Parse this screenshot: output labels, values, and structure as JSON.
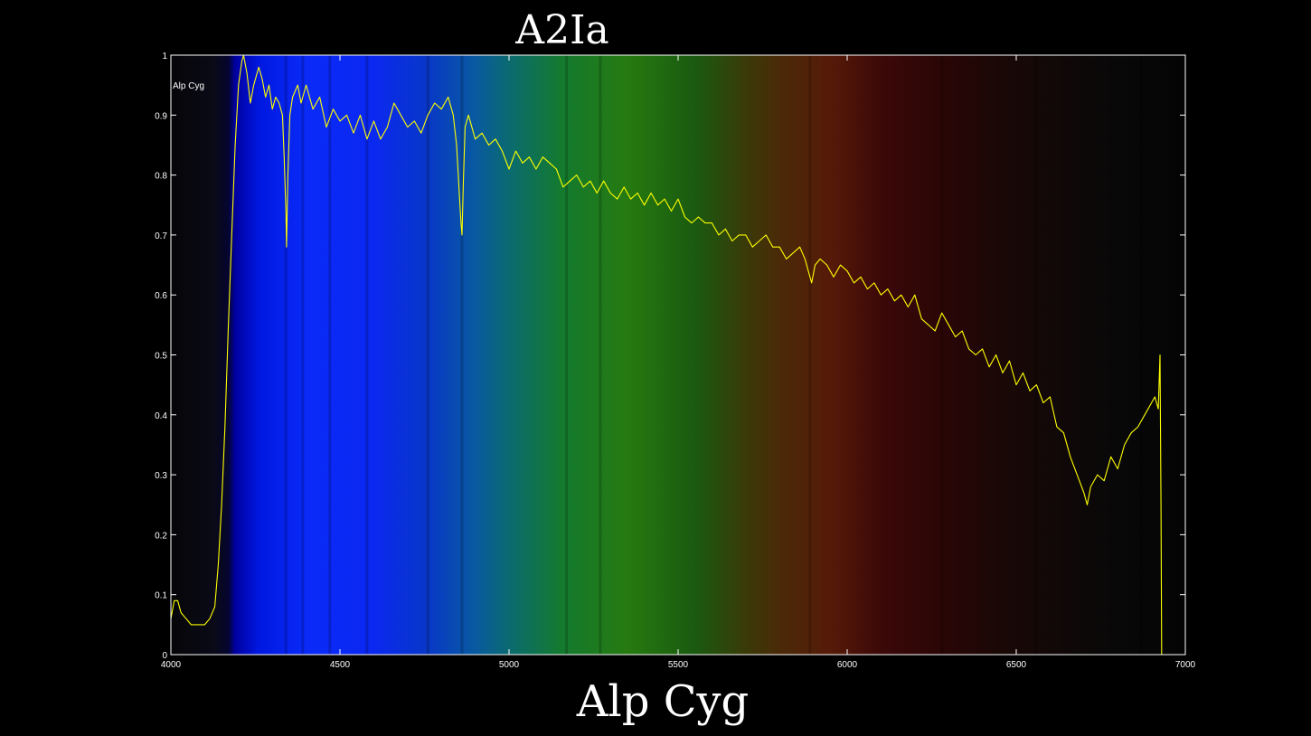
{
  "chart_data": {
    "type": "line",
    "title": "A2Ia",
    "xlabel": "Alp Cyg",
    "ylabel": "",
    "xlim": [
      4000,
      7000
    ],
    "ylim": [
      0,
      1
    ],
    "xticks": [
      4000,
      4500,
      5000,
      5500,
      6000,
      6500,
      7000
    ],
    "yticks": [
      0,
      0.1,
      0.2,
      0.3,
      0.4,
      0.5,
      0.6,
      0.7,
      0.8,
      0.9,
      1
    ],
    "grid": false,
    "legend": {
      "location": "top-left",
      "entries": [
        "Alp Cyg"
      ]
    },
    "colors": {
      "background": "#000000",
      "line": "#ffff00",
      "axes": "#ffffff"
    },
    "spectrum_background": [
      [
        4000,
        "#060608"
      ],
      [
        4130,
        "#0a0a18"
      ],
      [
        4170,
        "#050530"
      ],
      [
        4190,
        "#0000a0"
      ],
      [
        4260,
        "#0018e0"
      ],
      [
        4400,
        "#0a2af8"
      ],
      [
        4600,
        "#0a28f0"
      ],
      [
        4760,
        "#0838c8"
      ],
      [
        4900,
        "#085aa0"
      ],
      [
        5000,
        "#0b6a70"
      ],
      [
        5150,
        "#137a30"
      ],
      [
        5350,
        "#267a10"
      ],
      [
        5550,
        "#1a5a10"
      ],
      [
        5700,
        "#3a3a08"
      ],
      [
        5800,
        "#4a2a08"
      ],
      [
        5950,
        "#561a08"
      ],
      [
        6100,
        "#3c0808"
      ],
      [
        6300,
        "#280606"
      ],
      [
        6450,
        "#1a0806"
      ],
      [
        6600,
        "#120808"
      ],
      [
        6800,
        "#080808"
      ],
      [
        7000,
        "#040404"
      ]
    ],
    "series": [
      {
        "name": "Alp Cyg",
        "x": [
          4000,
          4010,
          4020,
          4030,
          4045,
          4060,
          4080,
          4100,
          4115,
          4130,
          4140,
          4150,
          4160,
          4170,
          4180,
          4190,
          4200,
          4210,
          4215,
          4225,
          4235,
          4245,
          4260,
          4270,
          4280,
          4290,
          4300,
          4310,
          4320,
          4330,
          4335,
          4340,
          4342,
          4346,
          4352,
          4360,
          4375,
          4385,
          4400,
          4420,
          4440,
          4460,
          4480,
          4500,
          4520,
          4540,
          4560,
          4580,
          4600,
          4620,
          4640,
          4660,
          4680,
          4700,
          4720,
          4740,
          4760,
          4780,
          4800,
          4820,
          4835,
          4845,
          4852,
          4858,
          4861,
          4865,
          4870,
          4880,
          4900,
          4920,
          4940,
          4960,
          4980,
          5000,
          5020,
          5040,
          5060,
          5080,
          5100,
          5120,
          5140,
          5160,
          5180,
          5200,
          5220,
          5240,
          5260,
          5280,
          5300,
          5320,
          5340,
          5360,
          5380,
          5400,
          5420,
          5440,
          5460,
          5480,
          5500,
          5520,
          5540,
          5560,
          5580,
          5600,
          5620,
          5640,
          5660,
          5680,
          5700,
          5720,
          5740,
          5760,
          5780,
          5800,
          5820,
          5840,
          5860,
          5875,
          5885,
          5895,
          5905,
          5920,
          5940,
          5960,
          5980,
          6000,
          6020,
          6040,
          6060,
          6080,
          6100,
          6120,
          6140,
          6160,
          6180,
          6200,
          6220,
          6240,
          6260,
          6280,
          6300,
          6320,
          6340,
          6360,
          6380,
          6400,
          6420,
          6440,
          6460,
          6480,
          6500,
          6520,
          6540,
          6560,
          6580,
          6600,
          6620,
          6640,
          6660,
          6680,
          6700,
          6710,
          6720,
          6740,
          6760,
          6780,
          6800,
          6820,
          6840,
          6860,
          6880,
          6900,
          6910,
          6920,
          6925,
          6928,
          6930
        ],
        "y": [
          0.06,
          0.09,
          0.09,
          0.07,
          0.06,
          0.05,
          0.05,
          0.05,
          0.06,
          0.08,
          0.15,
          0.25,
          0.38,
          0.55,
          0.7,
          0.85,
          0.95,
          0.99,
          1.0,
          0.97,
          0.92,
          0.95,
          0.98,
          0.96,
          0.93,
          0.95,
          0.91,
          0.93,
          0.92,
          0.9,
          0.83,
          0.74,
          0.68,
          0.8,
          0.9,
          0.93,
          0.95,
          0.92,
          0.95,
          0.91,
          0.93,
          0.88,
          0.91,
          0.89,
          0.9,
          0.87,
          0.9,
          0.86,
          0.89,
          0.86,
          0.88,
          0.92,
          0.9,
          0.88,
          0.89,
          0.87,
          0.9,
          0.92,
          0.91,
          0.93,
          0.9,
          0.85,
          0.78,
          0.72,
          0.7,
          0.79,
          0.88,
          0.9,
          0.86,
          0.87,
          0.85,
          0.86,
          0.84,
          0.81,
          0.84,
          0.82,
          0.83,
          0.81,
          0.83,
          0.82,
          0.81,
          0.78,
          0.79,
          0.8,
          0.78,
          0.79,
          0.77,
          0.79,
          0.77,
          0.76,
          0.78,
          0.76,
          0.77,
          0.75,
          0.77,
          0.75,
          0.76,
          0.74,
          0.76,
          0.73,
          0.72,
          0.73,
          0.72,
          0.72,
          0.7,
          0.71,
          0.69,
          0.7,
          0.7,
          0.68,
          0.69,
          0.7,
          0.68,
          0.68,
          0.66,
          0.67,
          0.68,
          0.66,
          0.64,
          0.62,
          0.65,
          0.66,
          0.65,
          0.63,
          0.65,
          0.64,
          0.62,
          0.63,
          0.61,
          0.62,
          0.6,
          0.61,
          0.59,
          0.6,
          0.58,
          0.6,
          0.56,
          0.55,
          0.54,
          0.57,
          0.55,
          0.53,
          0.54,
          0.51,
          0.5,
          0.51,
          0.48,
          0.5,
          0.47,
          0.49,
          0.45,
          0.47,
          0.44,
          0.45,
          0.42,
          0.43,
          0.38,
          0.37,
          0.33,
          0.3,
          0.27,
          0.25,
          0.28,
          0.3,
          0.29,
          0.33,
          0.31,
          0.35,
          0.37,
          0.38,
          0.4,
          0.42,
          0.43,
          0.41,
          0.5,
          0.25,
          0.0
        ]
      }
    ]
  }
}
